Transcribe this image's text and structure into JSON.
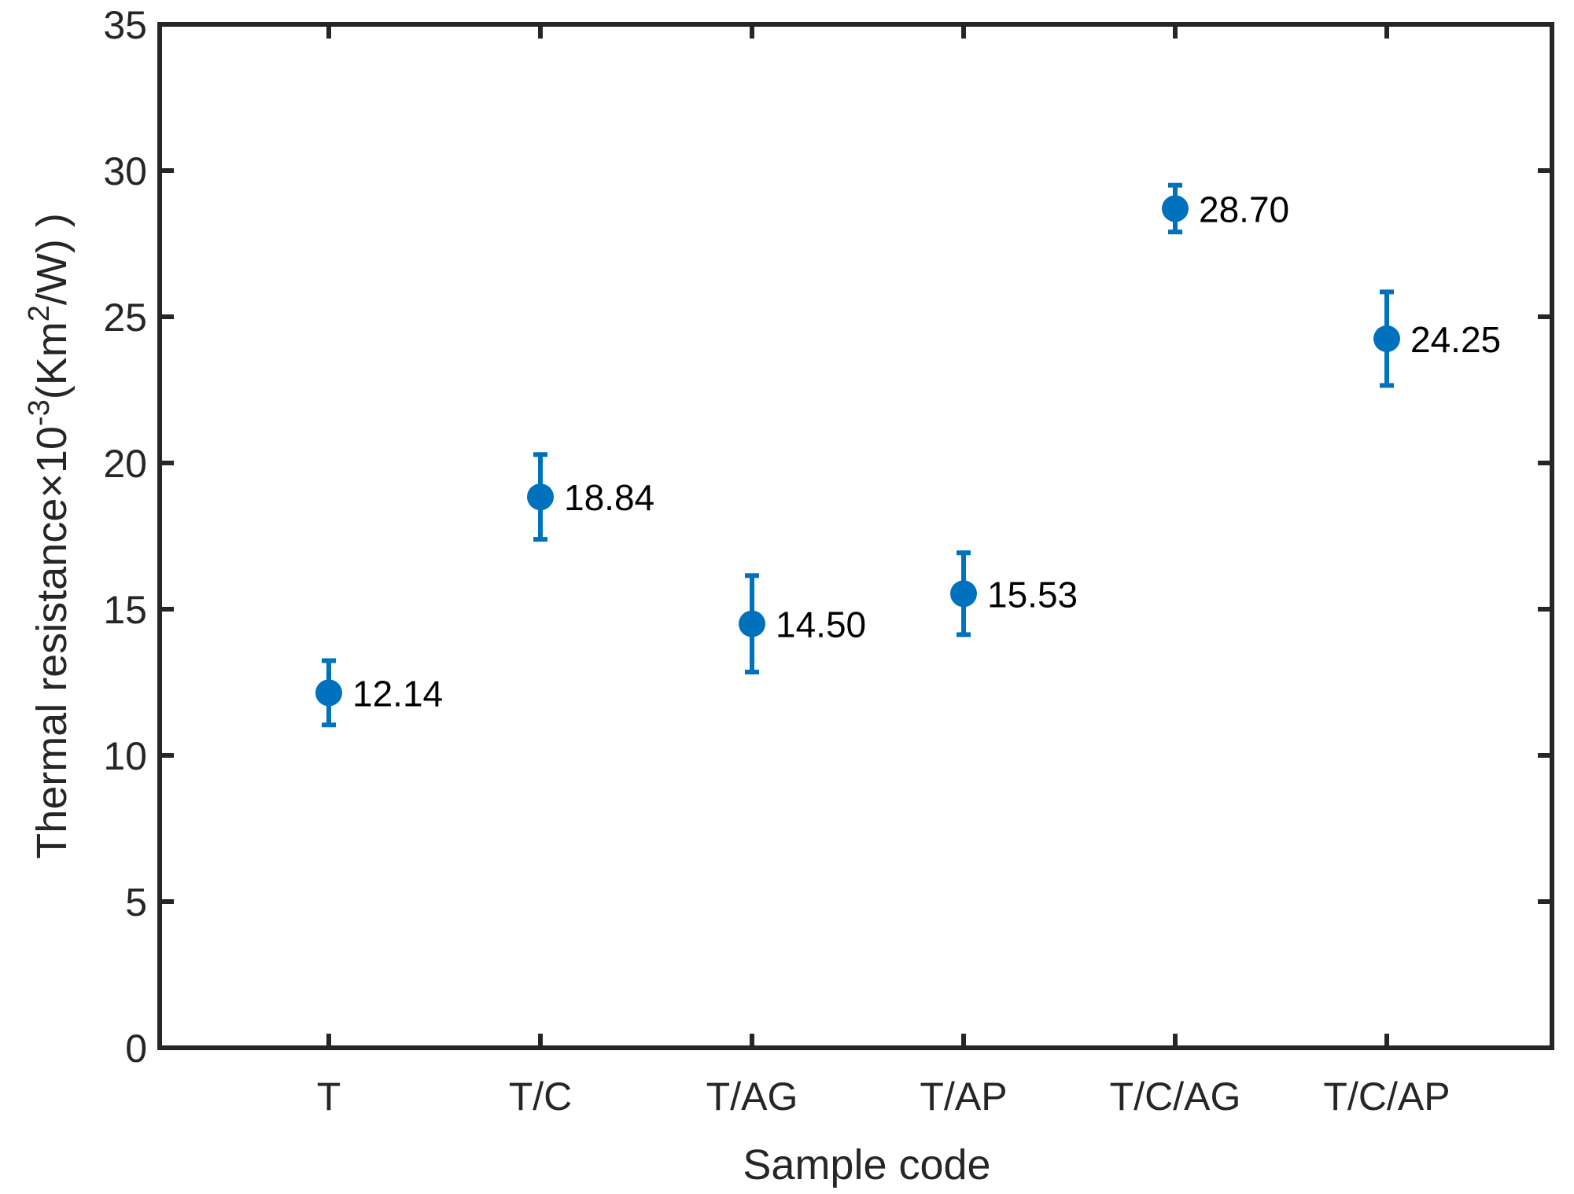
{
  "chart_data": {
    "type": "scatter",
    "categories": [
      "T",
      "T/C",
      "T/AG",
      "T/AP",
      "T/C/AG",
      "T/C/AP"
    ],
    "series": [
      {
        "values": [
          12.14,
          18.84,
          14.5,
          15.53,
          28.7,
          24.25
        ],
        "errors": [
          1.1,
          1.45,
          1.65,
          1.4,
          0.8,
          1.6
        ],
        "labels": [
          "12.14",
          "18.84",
          "14.50",
          "15.53",
          "28.70",
          "24.25"
        ]
      }
    ],
    "xlabel": "Sample code",
    "ylabel": {
      "prefix": "Thermal resistance×10",
      "exp1": "-3",
      "mid": "(Km",
      "exp2": "2",
      "suffix": "/W) )"
    },
    "ylim": [
      0,
      35
    ],
    "yticks": [
      0,
      5,
      10,
      15,
      20,
      25,
      30,
      35
    ],
    "grid": false,
    "legend": "none",
    "colors": {
      "marker": "#0072BD",
      "axis": "#262626"
    }
  }
}
